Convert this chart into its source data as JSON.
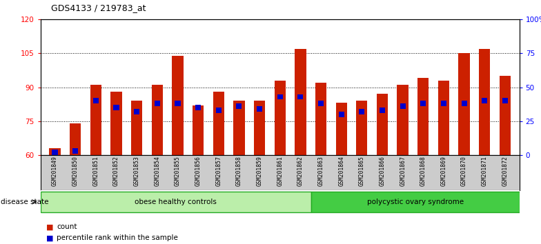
{
  "title": "GDS4133 / 219783_at",
  "samples": [
    "GSM201849",
    "GSM201850",
    "GSM201851",
    "GSM201852",
    "GSM201853",
    "GSM201854",
    "GSM201855",
    "GSM201856",
    "GSM201857",
    "GSM201858",
    "GSM201859",
    "GSM201861",
    "GSM201862",
    "GSM201863",
    "GSM201864",
    "GSM201865",
    "GSM201866",
    "GSM201867",
    "GSM201868",
    "GSM201869",
    "GSM201870",
    "GSM201871",
    "GSM201872"
  ],
  "counts": [
    63,
    74,
    91,
    88,
    84,
    91,
    104,
    82,
    88,
    84,
    84,
    93,
    107,
    92,
    83,
    84,
    87,
    91,
    94,
    93,
    105,
    107,
    95
  ],
  "percentiles": [
    2,
    3,
    40,
    35,
    32,
    38,
    38,
    35,
    33,
    36,
    34,
    43,
    43,
    38,
    30,
    32,
    33,
    36,
    38,
    38,
    38,
    40,
    40
  ],
  "group1_label": "obese healthy controls",
  "group2_label": "polycystic ovary syndrome",
  "group1_count": 13,
  "group2_count": 10,
  "ymin": 60,
  "ymax": 120,
  "yticks": [
    60,
    75,
    90,
    105,
    120
  ],
  "pmin": 0,
  "pmax": 100,
  "pticks": [
    0,
    25,
    50,
    75,
    100
  ],
  "ptick_labels": [
    "0",
    "25",
    "50",
    "75",
    "100%"
  ],
  "bar_color": "#cc2000",
  "pct_color": "#0000cc",
  "group1_bg": "#bbeeaa",
  "group2_bg": "#44cc44",
  "label_bg": "#cccccc",
  "legend_count": "count",
  "legend_pct": "percentile rank within the sample"
}
